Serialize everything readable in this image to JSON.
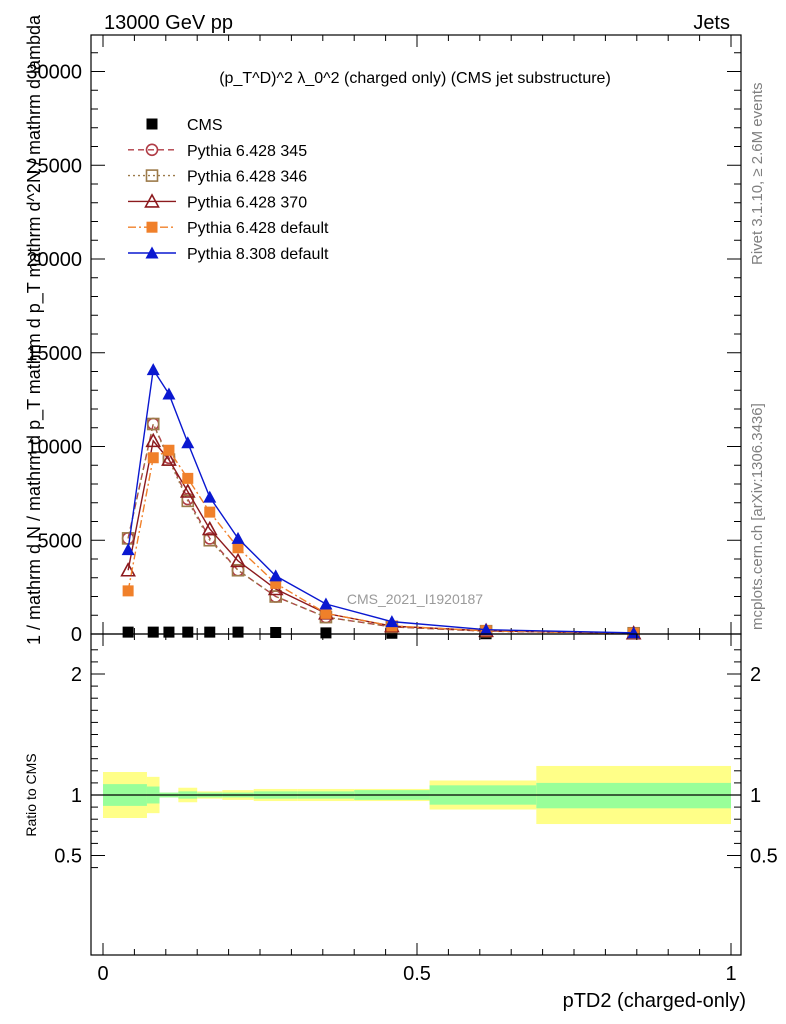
{
  "header": {
    "left": "13000 GeV pp",
    "right": "Jets"
  },
  "side_labels": {
    "rivet": "Rivet 3.1.10, ≥ 2.6M events",
    "mcplots": "mcplots.cern.ch [arXiv:1306.3436]"
  },
  "chart_data": [
    {
      "type": "line",
      "title": "(p_T^D)^2 λ_0^2 (charged only) (CMS jet substructure)",
      "ylabel": "1 / mathrm d N / mathrm d p_T mathrm d p_T mathrm d^2N / mathrm d lambda",
      "ylim": [
        0,
        32000
      ],
      "xlim": [
        0,
        1
      ],
      "yticks": [
        0,
        5000,
        10000,
        15000,
        20000,
        25000,
        30000
      ],
      "watermark": "CMS_2021_I1920187",
      "legend_position": "top-left",
      "x": [
        0.04,
        0.08,
        0.105,
        0.135,
        0.17,
        0.215,
        0.275,
        0.355,
        0.46,
        0.61,
        0.845
      ],
      "series": [
        {
          "name": "CMS",
          "color": "#000000",
          "marker": "square",
          "line": "none",
          "values": [
            100,
            100,
            100,
            100,
            100,
            100,
            80,
            60,
            40,
            15,
            5
          ]
        },
        {
          "name": "Pythia 6.428 345",
          "color": "#b03c46",
          "marker": "circle-open",
          "line": "dashed",
          "values": [
            5100,
            11200,
            9400,
            7200,
            5100,
            3400,
            2000,
            900,
            380,
            150,
            40
          ]
        },
        {
          "name": "Pythia 6.428 346",
          "color": "#9c7a4a",
          "marker": "square-open",
          "line": "dotted",
          "values": [
            5100,
            11200,
            9300,
            7100,
            5000,
            3400,
            2000,
            900,
            380,
            150,
            40
          ]
        },
        {
          "name": "Pythia 6.428 370",
          "color": "#8c1a1e",
          "marker": "triangle-open",
          "line": "solid",
          "values": [
            3400,
            10300,
            9300,
            7600,
            5600,
            3900,
            2400,
            1100,
            420,
            170,
            40
          ]
        },
        {
          "name": "Pythia 6.428 default",
          "color": "#f0802a",
          "marker": "square",
          "line": "dashdot",
          "values": [
            2300,
            9400,
            9800,
            8300,
            6500,
            4600,
            2700,
            1100,
            430,
            170,
            40
          ]
        },
        {
          "name": "Pythia 8.308 default",
          "color": "#0a18d0",
          "marker": "triangle",
          "line": "solid",
          "values": [
            4500,
            14100,
            12800,
            10200,
            7300,
            5100,
            3100,
            1600,
            660,
            230,
            60
          ]
        }
      ]
    },
    {
      "type": "area",
      "ylabel": "Ratio to CMS",
      "xlabel": "pTD2 (charged-only)",
      "ylim": [
        0.3,
        2.25
      ],
      "xlim": [
        0,
        1
      ],
      "yticks": [
        0.5,
        1,
        2
      ],
      "xticks": [
        0,
        0.5,
        1
      ],
      "reference_line": 1,
      "bands": {
        "bin_edges": [
          0,
          0.07,
          0.09,
          0.12,
          0.15,
          0.19,
          0.24,
          0.31,
          0.4,
          0.52,
          0.69,
          1.0
        ],
        "stat": {
          "name": "stat",
          "color": "#99ff99",
          "lower": [
            0.91,
            0.93,
            0.98,
            0.97,
            0.98,
            0.98,
            0.97,
            0.97,
            0.96,
            0.92,
            0.89
          ],
          "upper": [
            1.09,
            1.07,
            1.02,
            1.03,
            1.02,
            1.02,
            1.03,
            1.03,
            1.04,
            1.08,
            1.1
          ]
        },
        "total": {
          "name": "stat+syst",
          "color": "#ffff88",
          "lower": [
            0.81,
            0.85,
            0.98,
            0.94,
            0.97,
            0.96,
            0.95,
            0.95,
            0.95,
            0.88,
            0.76
          ],
          "upper": [
            1.19,
            1.15,
            1.02,
            1.06,
            1.03,
            1.04,
            1.05,
            1.05,
            1.05,
            1.12,
            1.24
          ]
        }
      }
    }
  ]
}
